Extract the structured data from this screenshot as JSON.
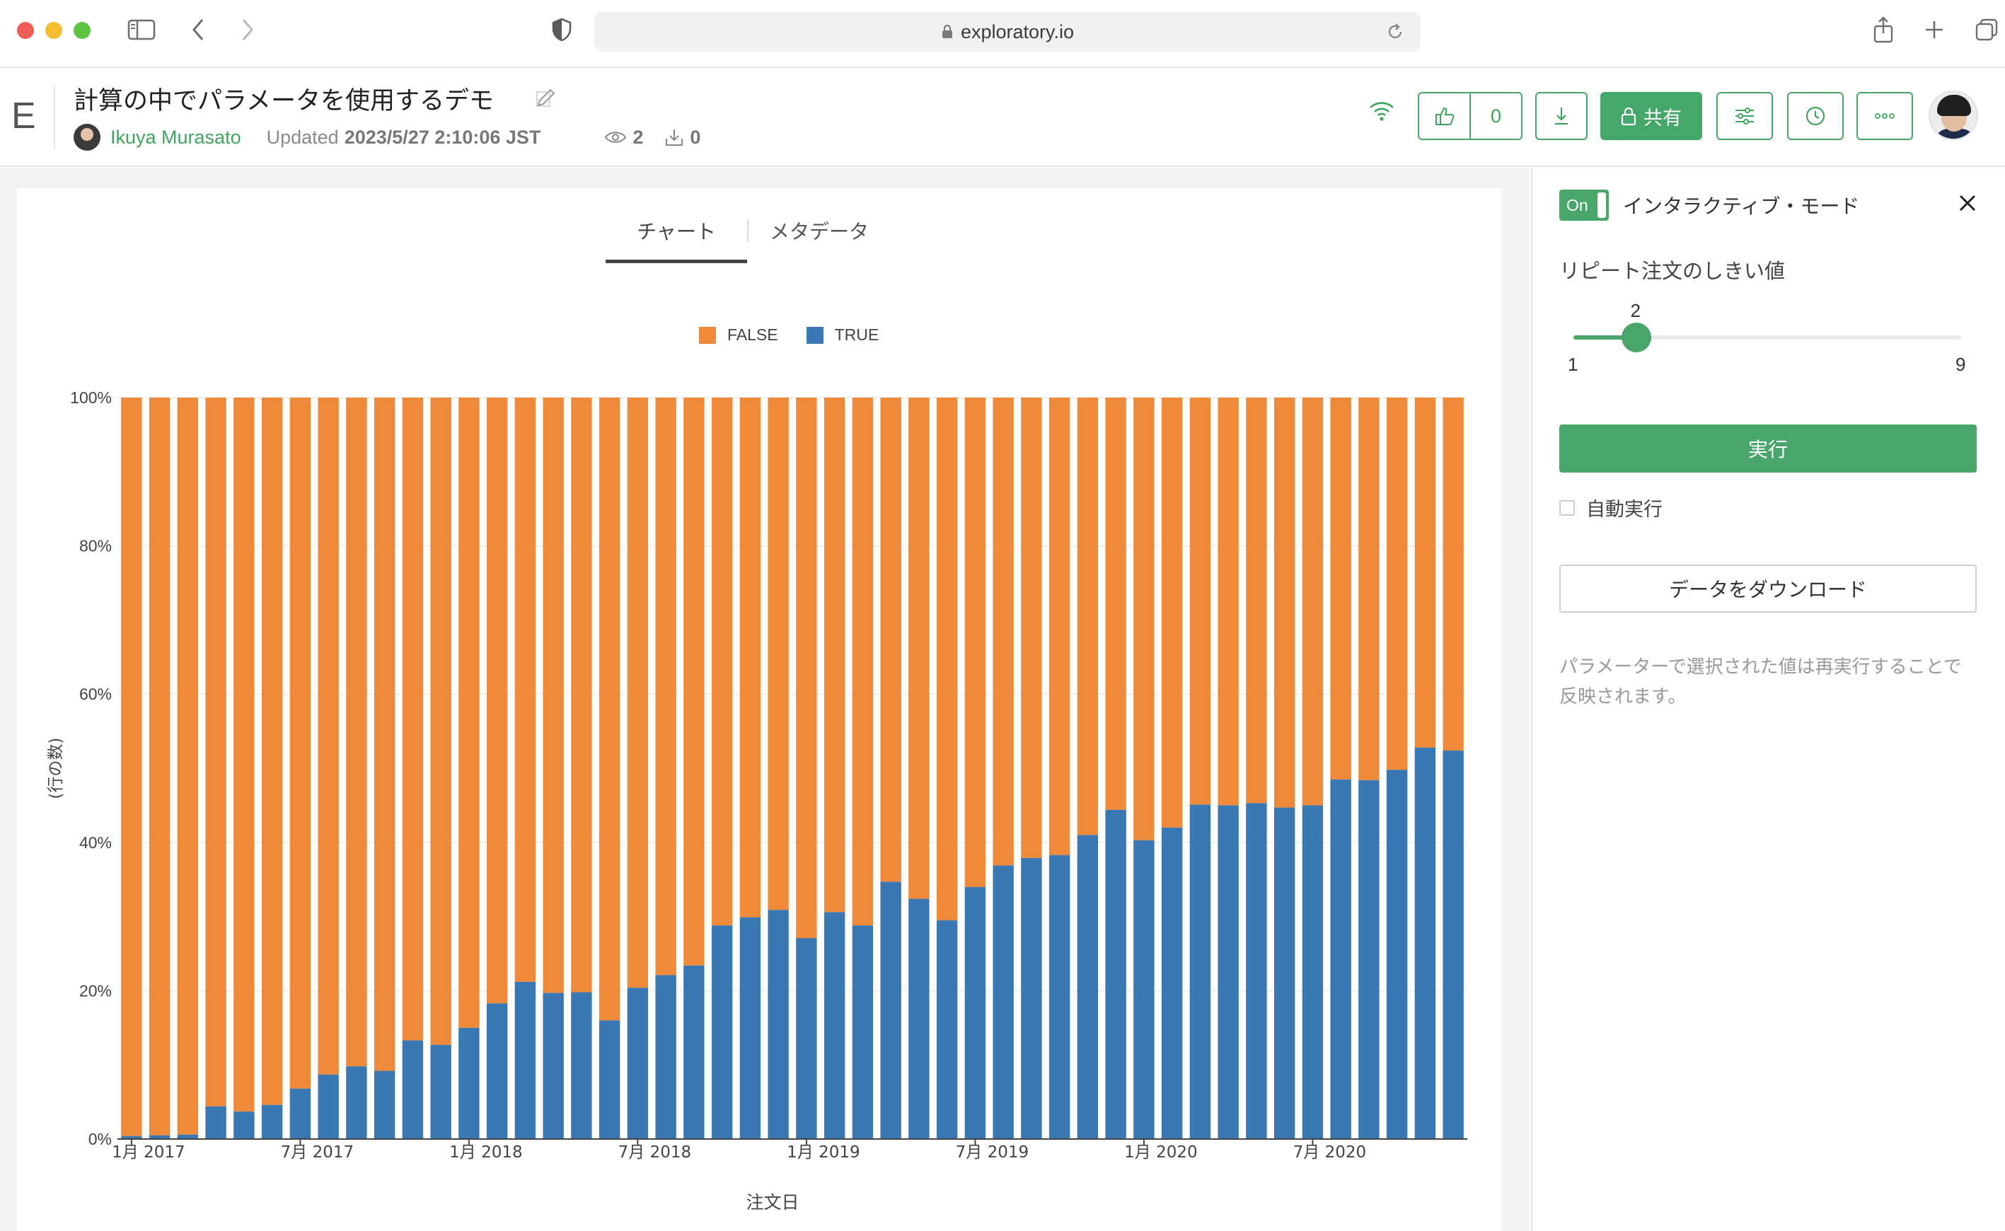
{
  "browser": {
    "url": "exploratory.io"
  },
  "header": {
    "logo": "E",
    "title": "計算の中でパラメータを使用するデモ",
    "author": "Ikuya Murasato",
    "updated_label": "Updated",
    "updated_value": "2023/5/27 2:10:06 JST",
    "views": "2",
    "downloads": "0",
    "likes": "0",
    "share_label": "共有"
  },
  "tabs": [
    {
      "label": "チャート",
      "active": true
    },
    {
      "label": "メタデータ",
      "active": false
    }
  ],
  "panel": {
    "toggle_label": "On",
    "mode_label": "インタラクティブ・モード",
    "param_label": "リピート注文のしきい値",
    "slider": {
      "min": 1,
      "max": 9,
      "value": 2,
      "min_label": "1",
      "max_label": "9",
      "value_label": "2"
    },
    "run_label": "実行",
    "auto_run_label": "自動実行",
    "download_label": "データをダウンロード",
    "note": "パラメーターで選択された値は再実行することで反映されます。"
  },
  "colors": {
    "accent": "#4aa56b",
    "false_series": "#ef8a3a",
    "true_series": "#3a78b4"
  },
  "chart_data": {
    "type": "bar",
    "stacked": true,
    "normalized": true,
    "xlabel": "注文日",
    "ylabel": "(行の数)",
    "ylim": [
      0,
      100
    ],
    "yticks": [
      "0%",
      "20%",
      "40%",
      "60%",
      "80%",
      "100%"
    ],
    "xtick_labels": [
      {
        "label": "1月 2017",
        "index": 0
      },
      {
        "label": "7月 2017",
        "index": 6
      },
      {
        "label": "1月 2018",
        "index": 12
      },
      {
        "label": "7月 2018",
        "index": 18
      },
      {
        "label": "1月 2019",
        "index": 24
      },
      {
        "label": "7月 2019",
        "index": 30
      },
      {
        "label": "1月 2020",
        "index": 36
      },
      {
        "label": "7月 2020",
        "index": 42
      }
    ],
    "legend_position": "top",
    "series": [
      {
        "name": "FALSE",
        "color": "#ef8a3a"
      },
      {
        "name": "TRUE",
        "color": "#3a78b4"
      }
    ],
    "true_pct": [
      0.4,
      0.5,
      0.6,
      4.4,
      3.7,
      4.6,
      6.8,
      8.7,
      9.8,
      9.2,
      13.3,
      12.7,
      15.0,
      18.3,
      21.2,
      19.7,
      19.8,
      16.0,
      20.4,
      22.1,
      23.4,
      28.8,
      29.9,
      30.9,
      27.1,
      30.6,
      28.8,
      34.7,
      32.4,
      29.5,
      34.0,
      36.9,
      37.9,
      38.3,
      41.0,
      44.4,
      40.3,
      42.0,
      45.1,
      45.0,
      45.3,
      44.7,
      45.0,
      48.5,
      48.4,
      49.8,
      52.8,
      52.4
    ]
  }
}
